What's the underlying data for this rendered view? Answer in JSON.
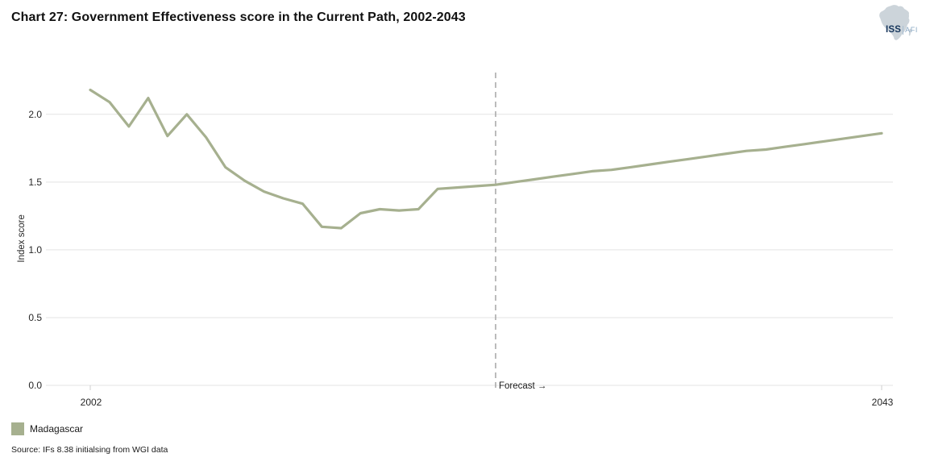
{
  "title": "Chart 27: Government Effectiveness score in the Current Path, 2002-2043",
  "logo": {
    "iss": "ISS",
    "afi": "AFI",
    "iss_color": "#16365c",
    "afi_color": "#8aa8c4",
    "sep_color": "#a9bdd2",
    "map_color": "#ccd4da"
  },
  "chart_data": {
    "type": "line",
    "title": "Chart 27: Government Effectiveness score in the Current Path, 2002-2043",
    "xlabel": "",
    "ylabel": "Index score",
    "x": [
      2002,
      2003,
      2004,
      2005,
      2006,
      2007,
      2008,
      2009,
      2010,
      2011,
      2012,
      2013,
      2014,
      2015,
      2016,
      2017,
      2018,
      2019,
      2020,
      2021,
      2022,
      2023,
      2024,
      2025,
      2026,
      2027,
      2028,
      2029,
      2030,
      2031,
      2032,
      2033,
      2034,
      2035,
      2036,
      2037,
      2038,
      2039,
      2040,
      2041,
      2042,
      2043
    ],
    "series": [
      {
        "name": "Madagascar",
        "color": "#a6b08f",
        "values": [
          2.18,
          2.09,
          1.91,
          2.12,
          1.84,
          2.0,
          1.83,
          1.61,
          1.51,
          1.43,
          1.38,
          1.34,
          1.17,
          1.16,
          1.27,
          1.3,
          1.29,
          1.3,
          1.45,
          1.46,
          1.47,
          1.48,
          1.5,
          1.52,
          1.54,
          1.56,
          1.58,
          1.59,
          1.61,
          1.63,
          1.65,
          1.67,
          1.69,
          1.71,
          1.73,
          1.74,
          1.76,
          1.78,
          1.8,
          1.82,
          1.84,
          1.86
        ]
      }
    ],
    "ylim": [
      0,
      2.32
    ],
    "yticks": [
      0.0,
      0.5,
      1.0,
      1.5,
      2.0
    ],
    "ytick_labels": [
      "0.0",
      "0.5",
      "1.0",
      "1.5",
      "2.0"
    ],
    "xticks": [
      2002,
      2043
    ],
    "xtick_labels": [
      "2002",
      "2043"
    ],
    "grid": true,
    "grid_color": "#e3e3e3",
    "tick_color": "#cfcfcf",
    "text_color": "#262626",
    "forecast_line_color": "#ababab",
    "legend_position": "bottom-left",
    "annotations": [
      {
        "type": "vline",
        "x": 2023,
        "label": "Forecast →",
        "style": "dashed"
      }
    ]
  },
  "legend": {
    "items": [
      {
        "label": "Madagascar",
        "color": "#a6b08f"
      }
    ]
  },
  "source": "Source: IFs 8.38 initialsing from WGI data"
}
